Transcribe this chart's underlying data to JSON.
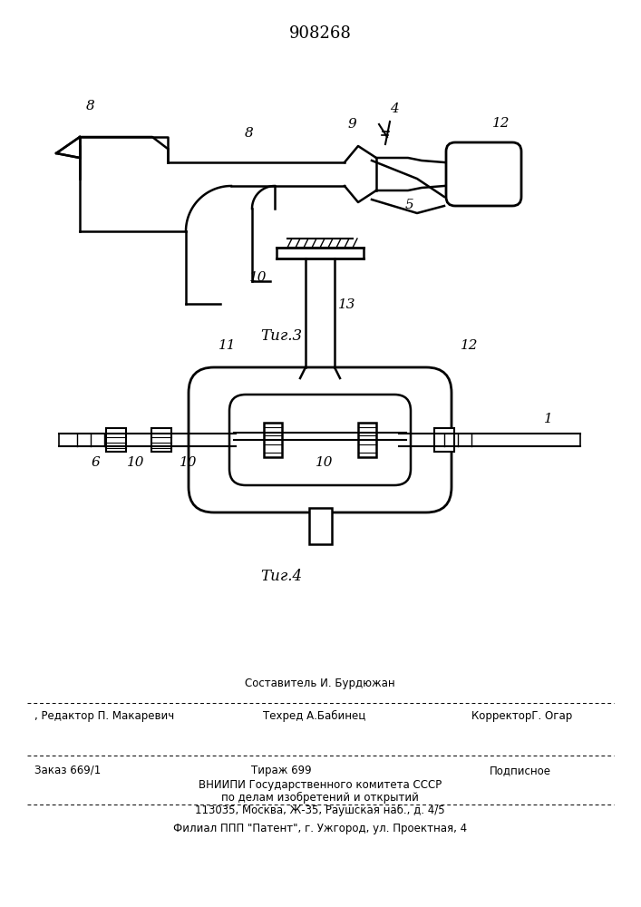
{
  "title": "908268",
  "bg": "#ffffff",
  "lc": "#000000",
  "fig3_caption": "Τиг.3",
  "fig4_caption": "Τиг.4",
  "footer": {
    "line0": "Составитель И. Бурдюжан",
    "line1_left": ", Редактор П. Макаревич",
    "line1_mid": "Техред А.Бабинец",
    "line1_right": "КорректорГ. Огар",
    "line2_left": "Заказ 669/1",
    "line2_mid": "Тираж 699",
    "line2_right": "Подписное",
    "line3": "ВНИИПИ Государственного комитета СССР",
    "line4": "по делам изобретений и открытий",
    "line5": "113035, Москва, Ж-35, Раушская наб., д. 4/5",
    "line6": "Филиал ППП \"Патент\", г. Ужгород, ул. Проектная, 4"
  }
}
